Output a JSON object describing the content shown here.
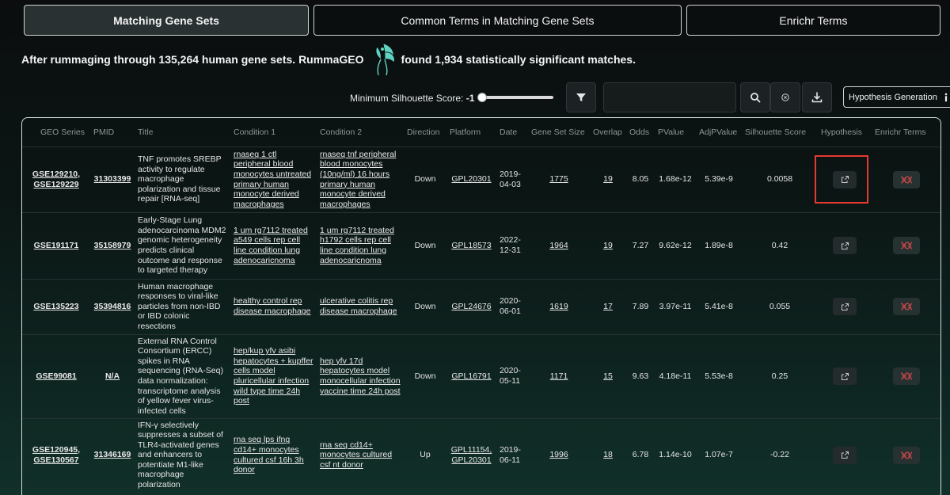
{
  "tabs": [
    {
      "label": "Matching Gene Sets",
      "active": true
    },
    {
      "label": "Common Terms in Matching Gene Sets",
      "active": false
    },
    {
      "label": "Enrichr Terms",
      "active": false
    }
  ],
  "summary": {
    "before": "After rummaging through 135,264 human gene sets. RummaGEO",
    "after": "found 1,934 statistically significant matches."
  },
  "controls": {
    "silhouette_label": "Minimum Silhouette Score:",
    "silhouette_value": "-1",
    "silhouette_fraction": 0.0,
    "search_placeholder": "",
    "hypothesis_button": "Hypothesis Generation"
  },
  "colors": {
    "accent": "#e53a2f",
    "logo": "#5fd3c2"
  },
  "columns": [
    "GEO Series",
    "PMID",
    "Title",
    "Condition 1",
    "Condition 2",
    "Direction",
    "Platform",
    "Date",
    "Gene Set Size",
    "Overlap",
    "Odds",
    "PValue",
    "AdjPValue",
    "Silhouette Score",
    "Hypothesis",
    "Enrichr Terms"
  ],
  "rows": [
    {
      "geo": [
        "GSE129210,",
        "GSE129229"
      ],
      "pmid": "31303399",
      "title": "TNF promotes SREBP activity to regulate macrophage polarization and tissue repair [RNA-seq]",
      "cond1": "rnaseq 1 ctl peripheral blood monocytes untreated primary human monocyte derived macrophages",
      "cond2": "rnaseq tnf peripheral blood monocytes (10ng/ml) 16 hours primary human monocyte derived macrophages",
      "direction": "Down",
      "platform": [
        "GPL20301"
      ],
      "date": [
        "2019-",
        "04-03"
      ],
      "size": "1775",
      "overlap": "19",
      "odds": "8.05",
      "pvalue": "1.68e-12",
      "adjp": "5.39e-9",
      "silhouette": "0.0058"
    },
    {
      "geo": [
        "GSE191171"
      ],
      "pmid": "35158979",
      "title": "Early-Stage Lung adenocarcinoma MDM2 genomic heterogeneity predicts clinical outcome and response to targeted therapy",
      "cond1": "1 um rg7112 treated a549 cells rep cell line condition lung adenocaricnoma",
      "cond2": "1 um rg7112 treated h1792 cells rep cell line condition lung adenocaricnoma",
      "direction": "Down",
      "platform": [
        "GPL18573"
      ],
      "date": [
        "2022-",
        "12-31"
      ],
      "size": "1964",
      "overlap": "19",
      "odds": "7.27",
      "pvalue": "9.62e-12",
      "adjp": "1.89e-8",
      "silhouette": "0.42"
    },
    {
      "geo": [
        "GSE135223"
      ],
      "pmid": "35394816",
      "title": "Human macrophage responses to viral-like particles from non-IBD or IBD colonic resections",
      "cond1": "healthy control rep disease macrophage",
      "cond2": "ulcerative colitis rep disease macrophage",
      "direction": "Down",
      "platform": [
        "GPL24676"
      ],
      "date": [
        "2020-",
        "06-01"
      ],
      "size": "1619",
      "overlap": "17",
      "odds": "7.89",
      "pvalue": "3.97e-11",
      "adjp": "5.41e-8",
      "silhouette": "0.055"
    },
    {
      "geo": [
        "GSE99081"
      ],
      "pmid": "N/A",
      "title": "External RNA Control Consortium (ERCC) spikes in RNA sequencing (RNA-Seq) data normalization: transcriptome analysis of yellow fever virus-infected cells",
      "cond1": "hep/kup yfv asibi hepatocytes + kupffer cells model pluricellular infection wild type time 24h post",
      "cond2": "hep yfv 17d hepatocytes model monocellular infection vaccine time 24h post",
      "direction": "Down",
      "platform": [
        "GPL16791"
      ],
      "date": [
        "2020-",
        "05-11"
      ],
      "size": "1171",
      "overlap": "15",
      "odds": "9.63",
      "pvalue": "4.18e-11",
      "adjp": "5.53e-8",
      "silhouette": "0.25"
    },
    {
      "geo": [
        "GSE120945,",
        "GSE130567"
      ],
      "pmid": "31346169",
      "title": "IFN-γ selectively suppresses a subset of TLR4-activated genes and enhancers to potentiate M1-like macrophage polarization",
      "cond1": "rna seq lps ifng cd14+ monocytes cultured csf 16h 3h donor",
      "cond2": "rna seq cd14+ monocytes cultured csf nt donor",
      "direction": "Up",
      "platform": [
        "GPL11154,",
        "GPL20301"
      ],
      "date": [
        "2019-",
        "06-11"
      ],
      "size": "1996",
      "overlap": "18",
      "odds": "6.78",
      "pvalue": "1.14e-10",
      "adjp": "1.07e-7",
      "silhouette": "-0.22"
    }
  ]
}
